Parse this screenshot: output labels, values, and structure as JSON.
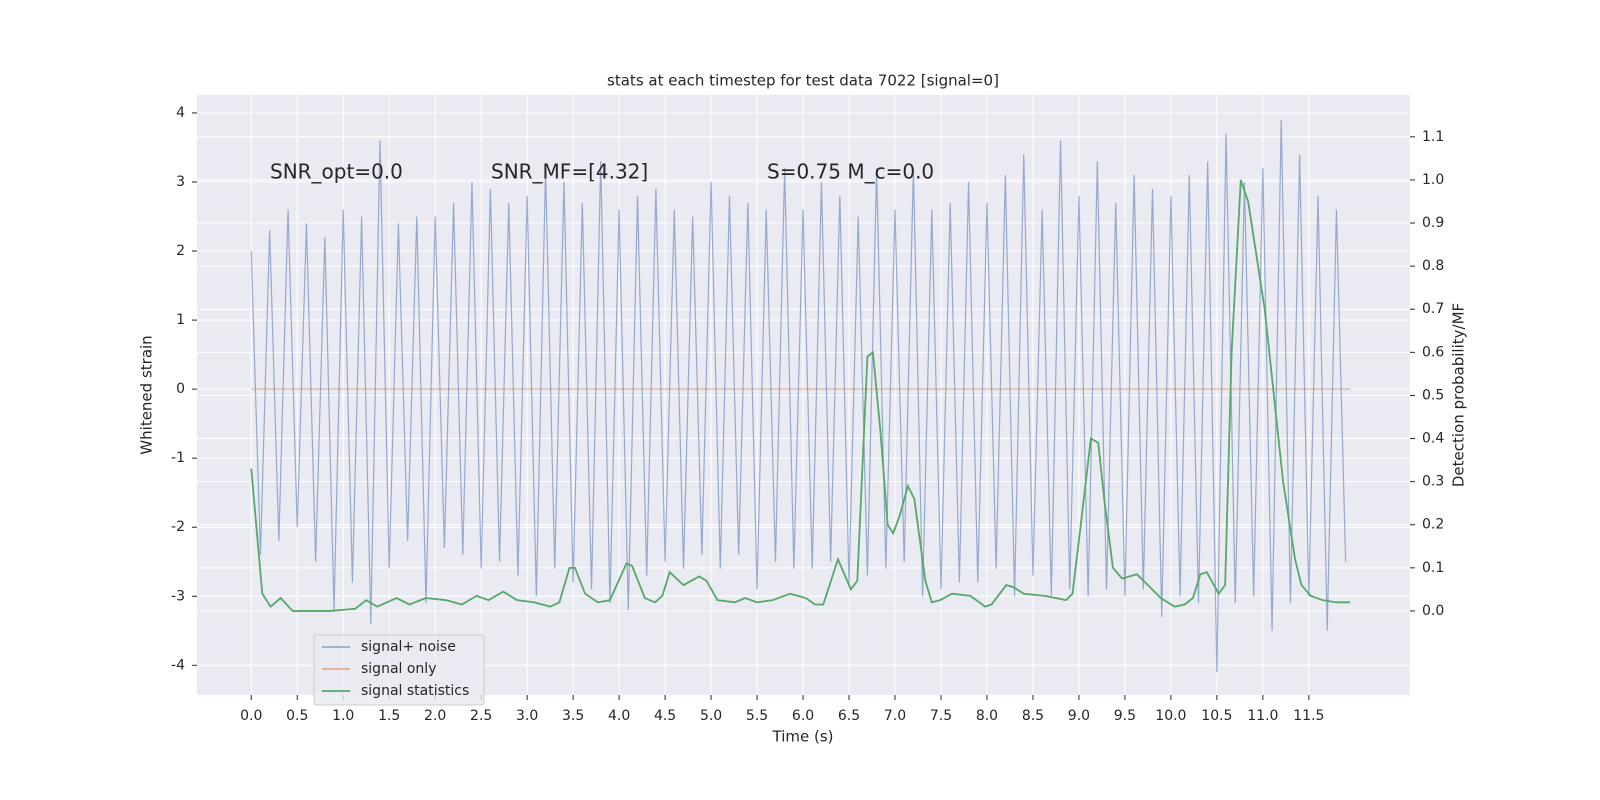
{
  "chart_data": {
    "type": "line",
    "title": "stats at each timestep for test data 7022 [signal=0]",
    "xlabel": "Time (s)",
    "ylabel": "Whitened strain",
    "y2label": "Detection probability/MF",
    "annotations": [
      "SNR_opt=0.0",
      "SNR_MF=[4.32]",
      "S=0.75   M_c=0.0"
    ],
    "grid": true,
    "legend": "lower left",
    "xlim": [
      -0.59,
      12.6
    ],
    "xticks": [
      {
        "value": 0,
        "label": "0.0"
      },
      0.5,
      {
        "value": 1,
        "label": "1.0"
      },
      1.5,
      {
        "value": 2,
        "label": "2.0"
      },
      2.5,
      {
        "value": 3,
        "label": "3.0"
      },
      3.5,
      {
        "value": 4,
        "label": "4.0"
      },
      4.5,
      {
        "value": 5,
        "label": "5.0"
      },
      5.5,
      {
        "value": 6,
        "label": "6.0"
      },
      6.5,
      {
        "value": 7,
        "label": "7.0"
      },
      7.5,
      {
        "value": 8,
        "label": "8.0"
      },
      8.5,
      {
        "value": 9,
        "label": "9.0"
      },
      9.5,
      {
        "value": 10,
        "label": "10.0"
      },
      10.5,
      {
        "value": 11,
        "label": "11.0"
      },
      11.5
    ],
    "ylim": [
      -4.43,
      4.26
    ],
    "yticks": [
      -4,
      -3,
      -2,
      -1,
      0,
      1,
      2,
      3,
      4
    ],
    "y2lim": [
      -0.195,
      1.197
    ],
    "y2ticks": [
      {
        "value": 0,
        "label": "0.0"
      },
      0.1,
      0.2,
      0.3,
      0.4,
      0.5,
      0.6,
      0.7,
      0.8,
      0.9,
      {
        "value": 1,
        "label": "1.0"
      },
      1.1
    ],
    "series": [
      {
        "name": "signal+ noise",
        "color": "#4c72b0",
        "opacity": 0.55,
        "x": [
          0.0,
          0.1,
          0.2,
          0.3,
          0.4,
          0.5,
          0.6,
          0.7,
          0.8,
          0.9,
          1.0,
          1.1,
          1.2,
          1.3,
          1.4,
          1.5,
          1.6,
          1.7,
          1.8,
          1.9,
          2.0,
          2.1,
          2.2,
          2.3,
          2.4,
          2.5,
          2.6,
          2.7,
          2.8,
          2.9,
          3.0,
          3.1,
          3.2,
          3.3,
          3.4,
          3.5,
          3.6,
          3.7,
          3.8,
          3.9,
          4.0,
          4.1,
          4.2,
          4.3,
          4.4,
          4.5,
          4.6,
          4.7,
          4.8,
          4.9,
          5.0,
          5.1,
          5.2,
          5.3,
          5.4,
          5.5,
          5.6,
          5.7,
          5.8,
          5.9,
          6.0,
          6.1,
          6.2,
          6.3,
          6.4,
          6.5,
          6.6,
          6.7,
          6.8,
          6.9,
          7.0,
          7.1,
          7.2,
          7.3,
          7.4,
          7.5,
          7.6,
          7.7,
          7.8,
          7.9,
          8.0,
          8.1,
          8.2,
          8.3,
          8.4,
          8.5,
          8.6,
          8.7,
          8.8,
          8.9,
          9.0,
          9.1,
          9.2,
          9.3,
          9.4,
          9.5,
          9.6,
          9.7,
          9.8,
          9.9,
          10.0,
          10.1,
          10.2,
          10.3,
          10.4,
          10.5,
          10.6,
          10.7,
          10.8,
          10.9,
          11.0,
          11.1,
          11.2,
          11.3,
          11.4,
          11.5,
          11.6,
          11.7,
          11.8,
          11.9
        ],
        "values": [
          2.0,
          -2.4,
          2.3,
          -2.2,
          2.6,
          -2.0,
          2.4,
          -2.5,
          2.2,
          -3.2,
          2.6,
          -2.8,
          2.5,
          -3.4,
          3.6,
          -2.6,
          2.4,
          -2.2,
          2.5,
          -3.1,
          2.5,
          -2.3,
          2.7,
          -2.4,
          3.0,
          -2.6,
          2.9,
          -2.5,
          2.7,
          -2.7,
          2.8,
          -3.0,
          3.2,
          -2.6,
          3.0,
          -2.8,
          2.7,
          -2.9,
          3.3,
          -3.1,
          2.6,
          -3.2,
          2.8,
          -2.7,
          2.9,
          -2.5,
          2.6,
          -2.6,
          2.5,
          -2.4,
          3.0,
          -2.6,
          2.8,
          -2.4,
          2.7,
          -2.9,
          2.6,
          -2.5,
          3.2,
          -2.6,
          2.6,
          -2.6,
          3.0,
          -2.5,
          2.8,
          -2.8,
          2.5,
          -2.7,
          3.2,
          -2.6,
          2.6,
          -2.5,
          3.2,
          -3.0,
          2.6,
          -2.9,
          2.7,
          -2.8,
          3.0,
          -2.8,
          2.7,
          -2.6,
          3.1,
          -3.0,
          3.4,
          -2.7,
          2.6,
          -3.0,
          3.6,
          -2.9,
          2.8,
          -3.0,
          3.3,
          -2.9,
          2.7,
          -3.0,
          3.1,
          -2.9,
          2.9,
          -3.3,
          2.8,
          -3.0,
          3.1,
          -3.1,
          3.3,
          -4.1,
          3.7,
          -3.1,
          3.0,
          -3.0,
          3.2,
          -3.5,
          3.9,
          -3.1,
          3.4,
          -3.0,
          2.8,
          -3.5,
          2.6,
          -2.5
        ]
      },
      {
        "name": "signal only",
        "color": "#dd8452",
        "opacity": 0.6,
        "x": [
          0.0,
          11.95
        ],
        "values": [
          0,
          0
        ]
      },
      {
        "name": "signal statistics",
        "color": "#55a868",
        "opacity": 1,
        "axis": "y2",
        "x": [
          0.0,
          0.12,
          0.21,
          0.32,
          0.45,
          0.86,
          1.13,
          1.25,
          1.37,
          1.58,
          1.72,
          1.9,
          2.12,
          2.29,
          2.45,
          2.58,
          2.74,
          2.89,
          3.08,
          3.25,
          3.35,
          3.46,
          3.52,
          3.63,
          3.77,
          3.9,
          4.08,
          4.14,
          4.28,
          4.39,
          4.47,
          4.55,
          4.7,
          4.87,
          4.95,
          5.07,
          5.26,
          5.37,
          5.5,
          5.67,
          5.86,
          6.03,
          6.13,
          6.22,
          6.38,
          6.52,
          6.59,
          6.7,
          6.76,
          6.84,
          6.92,
          6.98,
          7.05,
          7.14,
          7.21,
          7.33,
          7.4,
          7.49,
          7.62,
          7.82,
          7.98,
          8.05,
          8.21,
          8.29,
          8.4,
          8.63,
          8.86,
          8.93,
          9.02,
          9.13,
          9.21,
          9.28,
          9.37,
          9.47,
          9.63,
          9.75,
          9.89,
          10.04,
          10.15,
          10.24,
          10.32,
          10.39,
          10.52,
          10.59,
          10.66,
          10.76,
          10.84,
          11.02,
          11.22,
          11.35,
          11.42,
          11.52,
          11.65,
          11.8,
          11.95
        ],
        "values": [
          0.33,
          0.04,
          0.01,
          0.03,
          0.0,
          0.0,
          0.005,
          0.025,
          0.01,
          0.03,
          0.015,
          0.03,
          0.025,
          0.015,
          0.035,
          0.025,
          0.045,
          0.025,
          0.02,
          0.01,
          0.02,
          0.1,
          0.1,
          0.04,
          0.02,
          0.025,
          0.11,
          0.105,
          0.03,
          0.02,
          0.035,
          0.09,
          0.06,
          0.08,
          0.07,
          0.025,
          0.02,
          0.03,
          0.02,
          0.025,
          0.04,
          0.03,
          0.015,
          0.015,
          0.12,
          0.05,
          0.07,
          0.59,
          0.6,
          0.42,
          0.2,
          0.18,
          0.22,
          0.29,
          0.26,
          0.07,
          0.02,
          0.025,
          0.04,
          0.035,
          0.01,
          0.015,
          0.06,
          0.055,
          0.04,
          0.035,
          0.025,
          0.04,
          0.2,
          0.4,
          0.39,
          0.25,
          0.1,
          0.075,
          0.085,
          0.06,
          0.03,
          0.01,
          0.015,
          0.03,
          0.085,
          0.09,
          0.04,
          0.06,
          0.6,
          1.0,
          0.95,
          0.7,
          0.3,
          0.12,
          0.06,
          0.035,
          0.025,
          0.02,
          0.02
        ]
      }
    ]
  }
}
